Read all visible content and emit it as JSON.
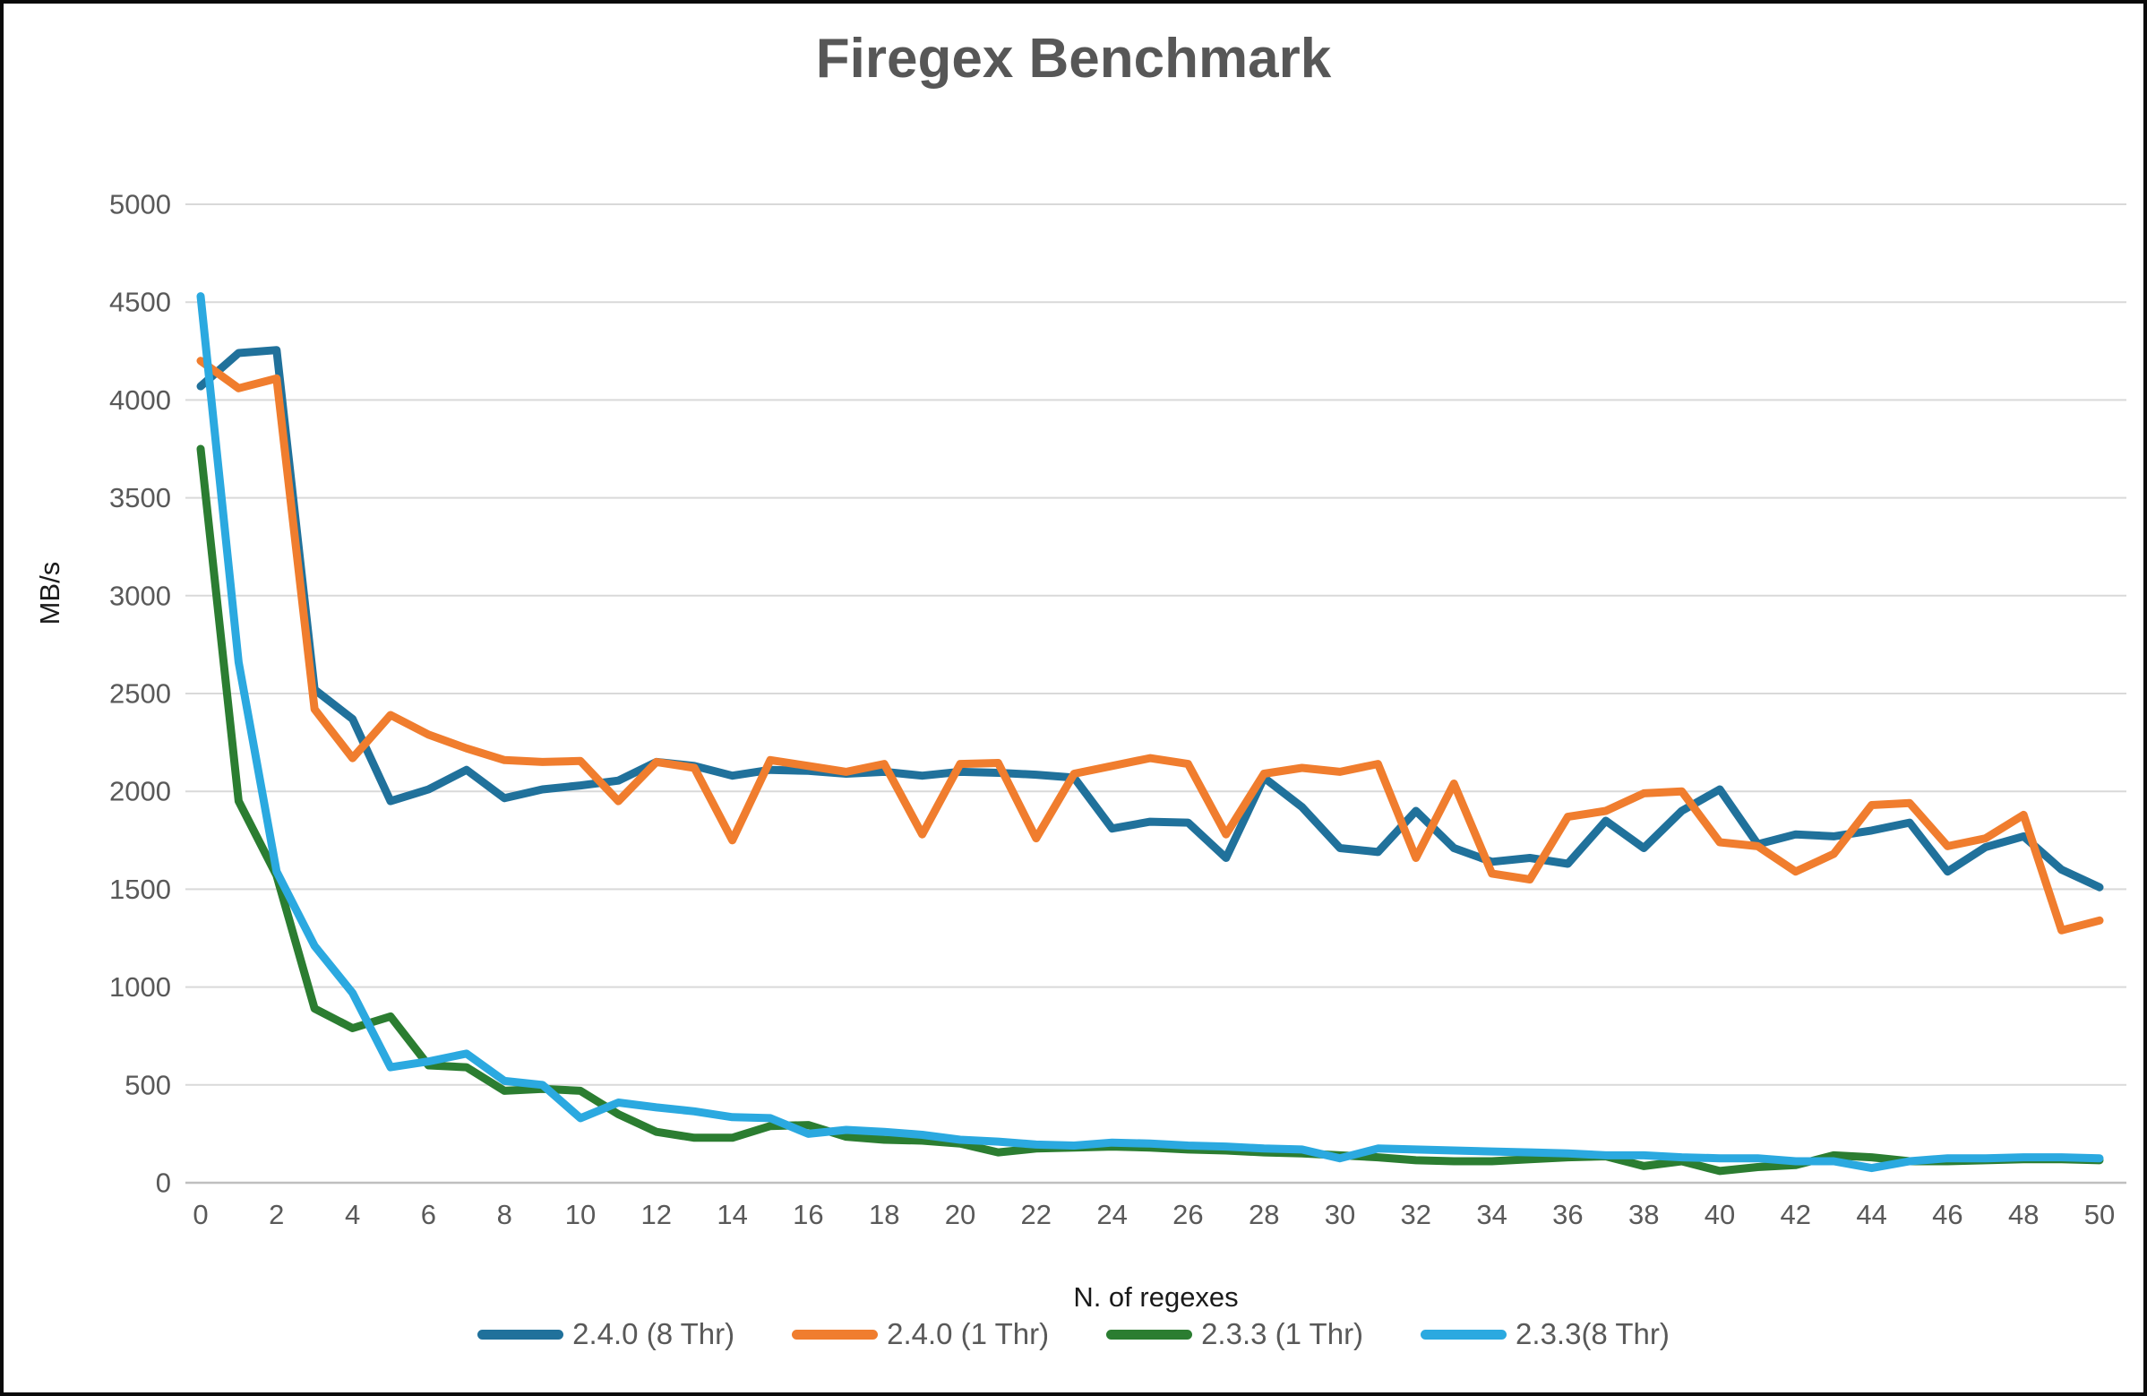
{
  "title": "Firegex Benchmark",
  "colors": {
    "title_text": "#575757",
    "tick_text": "#595959",
    "axis_title_text": "#1a1a1a",
    "gridline": "#d9d9d9",
    "axis_line": "#bfbfbf",
    "background": "#ffffff",
    "border": "#0a0a0a"
  },
  "chart_data": {
    "type": "line",
    "title": "Firegex Benchmark",
    "xlabel": "N. of regexes",
    "ylabel": "MB/s",
    "ylim": [
      0,
      5000
    ],
    "grid": "horizontal-major-500",
    "legend_position": "bottom",
    "x": [
      0,
      1,
      2,
      3,
      4,
      5,
      6,
      7,
      8,
      9,
      10,
      11,
      12,
      13,
      14,
      15,
      16,
      17,
      18,
      19,
      20,
      21,
      22,
      23,
      24,
      25,
      26,
      27,
      28,
      29,
      30,
      31,
      32,
      33,
      34,
      35,
      36,
      37,
      38,
      39,
      40,
      41,
      42,
      43,
      44,
      45,
      46,
      47,
      48,
      49,
      50
    ],
    "x_ticks": [
      0,
      2,
      4,
      6,
      8,
      10,
      12,
      14,
      16,
      18,
      20,
      22,
      24,
      26,
      28,
      30,
      32,
      34,
      36,
      38,
      40,
      42,
      44,
      46,
      48,
      50
    ],
    "y_ticks": [
      0,
      500,
      1000,
      1500,
      2000,
      2500,
      3000,
      3500,
      4000,
      4500,
      5000
    ],
    "series": [
      {
        "name": "2.4.0 (8 Thr)",
        "color": "#20719b",
        "values": [
          4070,
          4240,
          4255,
          2520,
          2370,
          1950,
          2010,
          2110,
          1965,
          2010,
          2030,
          2055,
          2150,
          2130,
          2080,
          2110,
          2105,
          2090,
          2100,
          2080,
          2100,
          2095,
          2085,
          2070,
          1810,
          1845,
          1840,
          1660,
          2070,
          1920,
          1710,
          1690,
          1900,
          1710,
          1640,
          1660,
          1630,
          1850,
          1710,
          1900,
          2010,
          1730,
          1780,
          1770,
          1800,
          1840,
          1590,
          1715,
          1770,
          1600,
          1510
        ]
      },
      {
        "name": "2.4.0 (1 Thr)",
        "color": "#f07d2e",
        "values": [
          4200,
          4060,
          4110,
          2420,
          2170,
          2390,
          2290,
          2220,
          2160,
          2150,
          2155,
          1950,
          2150,
          2120,
          1750,
          2160,
          2130,
          2100,
          2140,
          1780,
          2140,
          2145,
          1760,
          2090,
          2130,
          2170,
          2140,
          1780,
          2090,
          2120,
          2100,
          2140,
          1660,
          2040,
          1580,
          1550,
          1870,
          1900,
          1990,
          2000,
          1740,
          1720,
          1590,
          1680,
          1930,
          1940,
          1720,
          1760,
          1880,
          1290,
          1340
        ]
      },
      {
        "name": "2.3.3 (1 Thr)",
        "color": "#2b7d31",
        "values": [
          3750,
          1950,
          1570,
          890,
          790,
          850,
          600,
          590,
          470,
          480,
          470,
          350,
          260,
          230,
          230,
          290,
          295,
          235,
          220,
          215,
          200,
          155,
          175,
          180,
          185,
          180,
          170,
          165,
          155,
          150,
          140,
          130,
          115,
          110,
          110,
          120,
          130,
          135,
          85,
          110,
          60,
          80,
          90,
          140,
          130,
          110,
          110,
          115,
          120,
          120,
          115
        ]
      },
      {
        "name": "2.3.3(8 Thr)",
        "color": "#2ba9e0",
        "values": [
          4530,
          2660,
          1590,
          1210,
          970,
          590,
          620,
          660,
          520,
          500,
          330,
          410,
          385,
          365,
          335,
          330,
          250,
          270,
          260,
          245,
          220,
          210,
          195,
          190,
          205,
          200,
          190,
          185,
          175,
          170,
          125,
          175,
          170,
          165,
          160,
          155,
          150,
          140,
          140,
          130,
          125,
          125,
          110,
          110,
          75,
          110,
          125,
          125,
          130,
          130,
          125
        ]
      }
    ]
  }
}
